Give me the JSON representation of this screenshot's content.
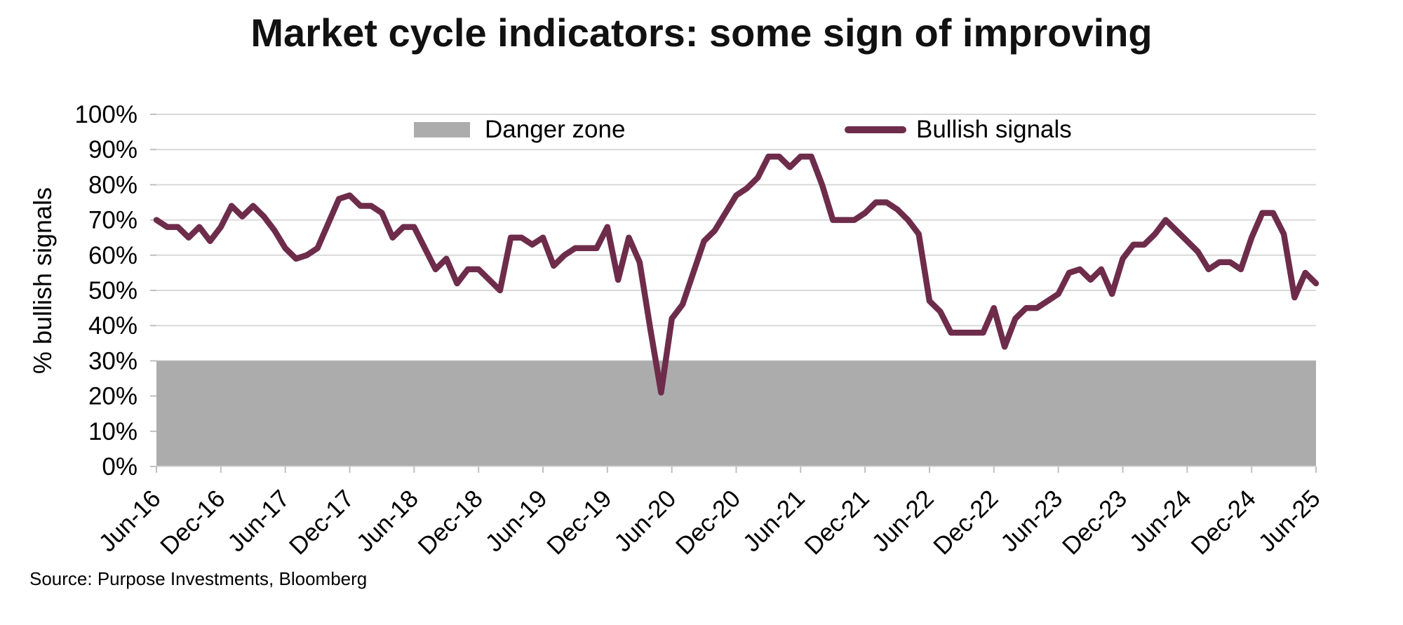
{
  "page": {
    "title": "Market cycle indicators: some sign of improving",
    "source_note": "Source: Purpose Investments, Bloomberg"
  },
  "legend": {
    "danger_zone_label": "Danger zone",
    "bullish_signals_label": "Bullish signals"
  },
  "y_axis_title": "% bullish signals",
  "colors": {
    "bullish_line": "#6E2C4B",
    "danger_zone_fill": "#ACACAC",
    "gridline": "#D9D9D9",
    "tick": "#BFBFBF",
    "text": "#000000"
  },
  "chart_data": {
    "type": "line",
    "title": "Market cycle indicators: some sign of improving",
    "xlabel": "",
    "ylabel": "% bullish signals",
    "ylim": [
      0,
      100
    ],
    "grid": "horizontal",
    "legend_position": "top-inside",
    "y_tick_labels": [
      "0%",
      "10%",
      "20%",
      "30%",
      "40%",
      "50%",
      "60%",
      "70%",
      "80%",
      "90%",
      "100%"
    ],
    "y_tick_values": [
      0,
      10,
      20,
      30,
      40,
      50,
      60,
      70,
      80,
      90,
      100
    ],
    "x_tick_labels": [
      "Jun-16",
      "Dec-16",
      "Jun-17",
      "Dec-17",
      "Jun-18",
      "Dec-18",
      "Jun-19",
      "Dec-19",
      "Jun-20",
      "Dec-20",
      "Jun-21",
      "Dec-21",
      "Jun-22",
      "Dec-22",
      "Jun-23",
      "Dec-23",
      "Jun-24",
      "Dec-24",
      "Jun-25"
    ],
    "x_frequency": "monthly",
    "x_range": [
      "Jun-2016",
      "Jun-2025"
    ],
    "danger_zone": {
      "label": "Danger zone",
      "range_percent": [
        0,
        30
      ]
    },
    "series": [
      {
        "name": "Bullish signals",
        "values_percent": [
          70,
          68,
          68,
          65,
          68,
          64,
          68,
          74,
          71,
          74,
          71,
          67,
          62,
          59,
          60,
          62,
          69,
          76,
          77,
          74,
          74,
          72,
          65,
          68,
          68,
          62,
          56,
          59,
          52,
          56,
          56,
          53,
          50,
          65,
          65,
          63,
          65,
          57,
          60,
          62,
          62,
          62,
          68,
          53,
          65,
          58,
          39,
          21,
          42,
          46,
          55,
          64,
          67,
          72,
          77,
          79,
          82,
          88,
          88,
          85,
          88,
          88,
          80,
          70,
          70,
          70,
          72,
          75,
          75,
          73,
          70,
          66,
          47,
          44,
          38,
          38,
          38,
          38,
          45,
          34,
          42,
          45,
          45,
          47,
          49,
          55,
          56,
          53,
          56,
          49,
          59,
          63,
          63,
          66,
          70,
          67,
          64,
          61,
          56,
          58,
          58,
          56,
          65,
          72,
          72,
          66,
          48,
          55,
          52
        ]
      }
    ]
  }
}
